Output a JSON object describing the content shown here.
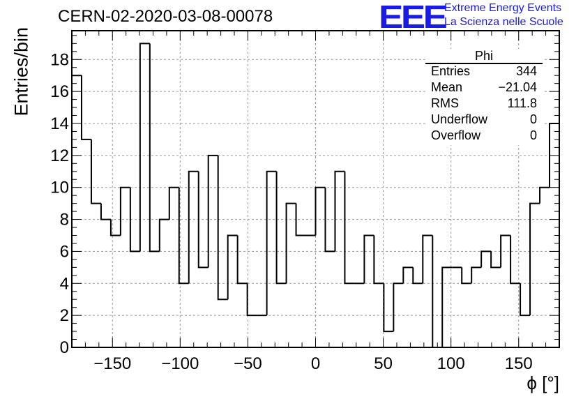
{
  "title": "CERN-02-2020-03-08-00078",
  "logo": {
    "mark": "EEE",
    "line1": "Extreme Energy Events",
    "line2": "La Scienza nelle Scuole",
    "color": "#1a1ae6"
  },
  "stats": {
    "name": "Phi",
    "rows": [
      {
        "key": "Entries",
        "value": "344"
      },
      {
        "key": "Mean",
        "value": "−21.04"
      },
      {
        "key": "RMS",
        "value": "111.8"
      },
      {
        "key": "Underflow",
        "value": "0"
      },
      {
        "key": "Overflow",
        "value": "0"
      }
    ]
  },
  "chart_data": {
    "type": "bar",
    "style": "step-histogram",
    "xlabel": "ϕ [°]",
    "ylabel": "Entries/bin",
    "xlim": [
      -180,
      180
    ],
    "ylim": [
      0,
      19.8
    ],
    "grid": true,
    "bin_width": 7.2,
    "bin_edges_start": -180,
    "values": [
      17,
      13,
      9,
      8,
      7,
      10,
      6,
      19,
      6,
      8,
      10,
      4,
      11,
      5,
      12,
      3,
      7,
      4,
      2,
      2,
      11,
      4,
      9,
      7,
      7,
      10,
      6,
      11,
      4,
      4,
      7,
      4,
      1,
      4,
      5,
      4,
      7,
      0,
      5,
      5,
      4,
      5,
      6,
      5,
      7,
      4,
      2,
      9,
      10,
      14
    ],
    "xticks": [
      {
        "v": -150,
        "label": "−150"
      },
      {
        "v": -100,
        "label": "−100"
      },
      {
        "v": -50,
        "label": "−50"
      },
      {
        "v": 0,
        "label": "0"
      },
      {
        "v": 50,
        "label": "50"
      },
      {
        "v": 100,
        "label": "100"
      },
      {
        "v": 150,
        "label": "150"
      }
    ],
    "yticks": [
      {
        "v": 0,
        "label": "0"
      },
      {
        "v": 2,
        "label": "2"
      },
      {
        "v": 4,
        "label": "4"
      },
      {
        "v": 6,
        "label": "6"
      },
      {
        "v": 8,
        "label": "8"
      },
      {
        "v": 10,
        "label": "10"
      },
      {
        "v": 12,
        "label": "12"
      },
      {
        "v": 14,
        "label": "14"
      },
      {
        "v": 16,
        "label": "16"
      },
      {
        "v": 18,
        "label": "18"
      }
    ]
  }
}
